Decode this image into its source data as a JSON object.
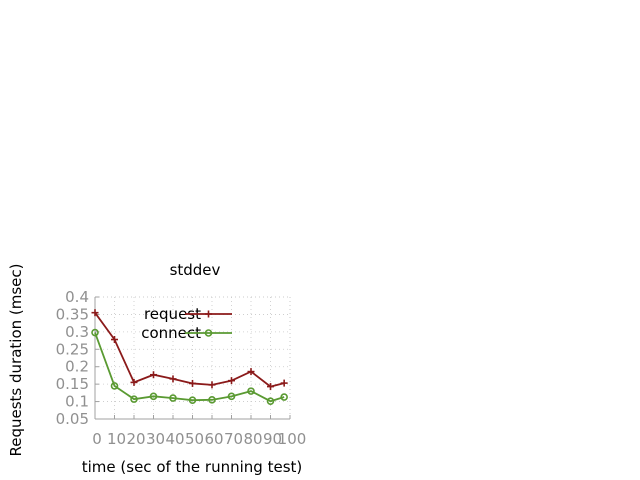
{
  "chart_data": {
    "type": "line",
    "title": "stddev",
    "xlabel": "time (sec of the running test)",
    "ylabel": "Requests duration (msec)",
    "xlim": [
      0,
      100
    ],
    "ylim": [
      0.05,
      0.4
    ],
    "x_ticks": [
      0,
      10,
      20,
      30,
      40,
      50,
      60,
      70,
      80,
      90,
      100
    ],
    "x_tick_labels": [
      "0",
      "10",
      "20",
      "30",
      "40",
      "50",
      "60",
      "70",
      "80",
      "90",
      "100"
    ],
    "y_ticks": [
      0.05,
      0.1,
      0.15,
      0.2,
      0.25,
      0.3,
      0.35,
      0.4
    ],
    "y_tick_labels": [
      "0.05",
      "0.1",
      "0.15",
      "0.2",
      "0.25",
      "0.3",
      "0.35",
      "0.4"
    ],
    "grid": true,
    "legend_position": "top-right",
    "x": [
      0,
      10,
      20,
      30,
      40,
      50,
      60,
      70,
      80,
      90,
      97
    ],
    "series": [
      {
        "name": "request",
        "color": "#8b1a1a",
        "marker": "plus",
        "values": [
          0.355,
          0.278,
          0.155,
          0.177,
          0.165,
          0.152,
          0.148,
          0.16,
          0.186,
          0.143,
          0.153
        ]
      },
      {
        "name": "connect",
        "color": "#5a9a32",
        "marker": "circle",
        "values": [
          0.298,
          0.145,
          0.107,
          0.115,
          0.11,
          0.104,
          0.105,
          0.115,
          0.13,
          0.101,
          0.113
        ]
      }
    ]
  }
}
